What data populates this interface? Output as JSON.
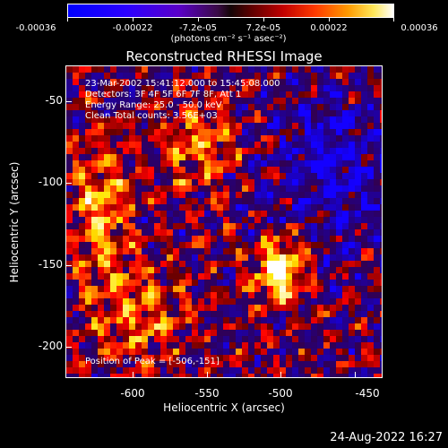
{
  "colorbar": {
    "tick_labels": [
      "-0.00036",
      "-0.00022",
      "-7.2e-05",
      "7.2e-05",
      "0.00022",
      "0.00036"
    ],
    "units": "(photons cm⁻² s⁻¹ asec⁻²)"
  },
  "title": "Reconstructed RHESSI Image",
  "info": {
    "time": "23-Mar-2002 15:41:12.000 to 15:45:08.000",
    "detectors": "Detectors: 3F 4F 5F 6F 7F 8F, Att 1",
    "energy": "Energy Range: 25.0 - 50.0 keV",
    "clean": "Clean     Total counts: 3.56E+03"
  },
  "peak": "Position of Peak = [-506,-151]",
  "axes": {
    "x_title": "Heliocentric X (arcsec)",
    "y_title": "Heliocentric Y (arcsec)",
    "x_ticks": [
      "-600",
      "-550",
      "-500",
      "-450"
    ],
    "y_ticks": [
      "-50",
      "-100",
      "-150",
      "-200"
    ]
  },
  "footer_date": "24-Aug-2022 16:27"
}
